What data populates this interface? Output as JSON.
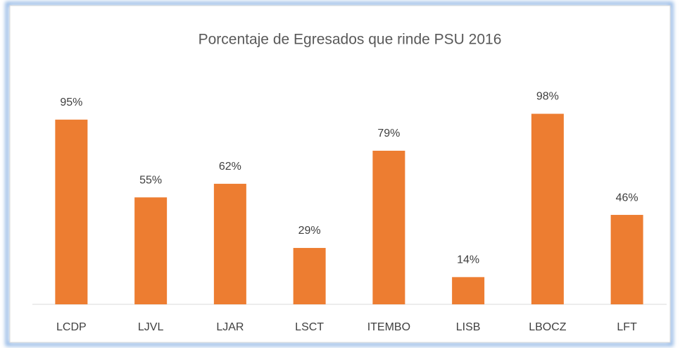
{
  "chart_data": {
    "type": "bar",
    "title": "Porcentaje de Egresados que rinde PSU 2016",
    "categories": [
      "LCDP",
      "LJVL",
      "LJAR",
      "LSCT",
      "ITEMBO",
      "LISB",
      "LBOCZ",
      "LFT"
    ],
    "values": [
      95,
      55,
      62,
      29,
      79,
      14,
      98,
      46
    ],
    "value_labels": [
      "95%",
      "55%",
      "62%",
      "29%",
      "79%",
      "14%",
      "98%",
      "46%"
    ],
    "color": "#ed7d31",
    "ylim": [
      0,
      100
    ]
  }
}
